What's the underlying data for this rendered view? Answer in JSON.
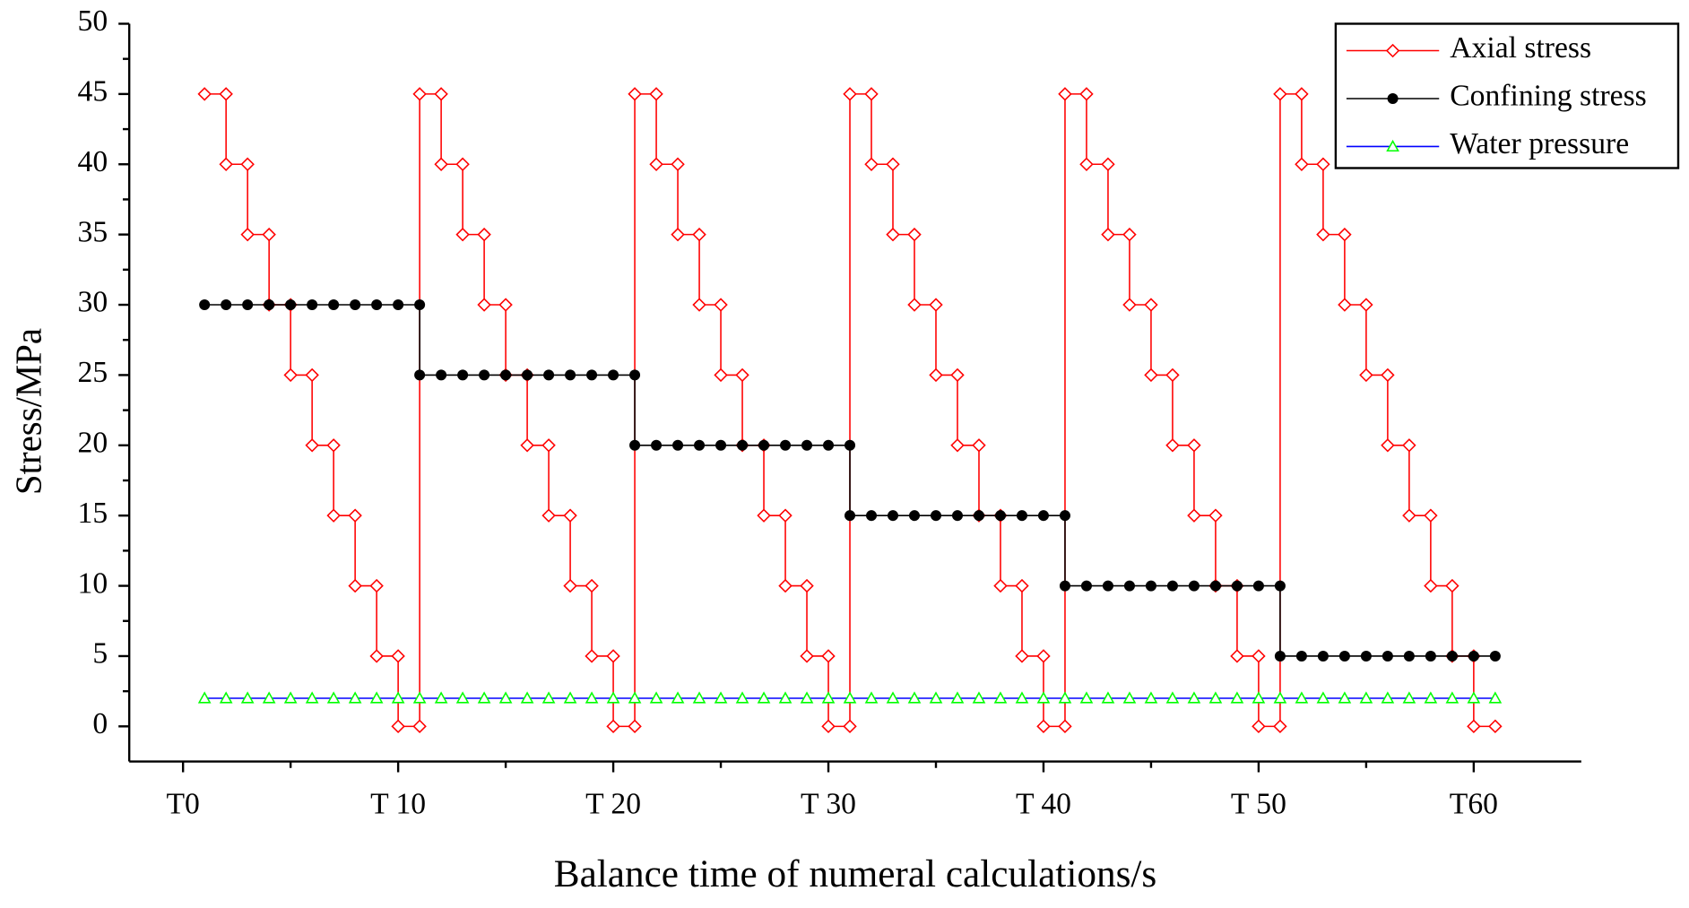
{
  "chart_data": {
    "type": "line",
    "xlabel": "Balance time of numeral calculations/s",
    "ylabel": "Stress/MPa",
    "xlim": [
      -2.5,
      65
    ],
    "xticks": [
      {
        "value": 0,
        "label": "T0"
      },
      {
        "value": 10,
        "label": "T 10"
      },
      {
        "value": 20,
        "label": "T 20"
      },
      {
        "value": 30,
        "label": "T 30"
      },
      {
        "value": 40,
        "label": "T 40"
      },
      {
        "value": 50,
        "label": "T 50"
      },
      {
        "value": 60,
        "label": "T60"
      }
    ],
    "ylim": [
      -2.5,
      50
    ],
    "yticks": [
      0,
      5,
      10,
      15,
      20,
      25,
      30,
      35,
      40,
      45,
      50
    ],
    "legend": "upper right",
    "series": [
      {
        "name": "Axial stress",
        "color": "#ff0000",
        "marker": "diamond",
        "marker_color": "#ff0000",
        "x": [
          1,
          2,
          2,
          3,
          3,
          4,
          4,
          5,
          5,
          6,
          6,
          7,
          7,
          8,
          8,
          9,
          9,
          10,
          10,
          11,
          11,
          12,
          12,
          13,
          13,
          14,
          14,
          15,
          15,
          16,
          16,
          17,
          17,
          18,
          18,
          19,
          19,
          20,
          20,
          21,
          21,
          22,
          22,
          23,
          23,
          24,
          24,
          25,
          25,
          26,
          26,
          27,
          27,
          28,
          28,
          29,
          29,
          30,
          30,
          31,
          31,
          32,
          32,
          33,
          33,
          34,
          34,
          35,
          35,
          36,
          36,
          37,
          37,
          38,
          38,
          39,
          39,
          40,
          40,
          41,
          41,
          42,
          42,
          43,
          43,
          44,
          44,
          45,
          45,
          46,
          46,
          47,
          47,
          48,
          48,
          49,
          49,
          50,
          50,
          51,
          51,
          52,
          52,
          53,
          53,
          54,
          54,
          55,
          55,
          56,
          56,
          57,
          57,
          58,
          58,
          59,
          59,
          60,
          60,
          61
        ],
        "values": [
          45,
          45,
          40,
          40,
          35,
          35,
          30,
          30,
          25,
          25,
          20,
          20,
          15,
          15,
          10,
          10,
          5,
          5,
          0,
          0,
          45,
          45,
          40,
          40,
          35,
          35,
          30,
          30,
          25,
          25,
          20,
          20,
          15,
          15,
          10,
          10,
          5,
          5,
          0,
          0,
          45,
          45,
          40,
          40,
          35,
          35,
          30,
          30,
          25,
          25,
          20,
          20,
          15,
          15,
          10,
          10,
          5,
          5,
          0,
          0,
          45,
          45,
          40,
          40,
          35,
          35,
          30,
          30,
          25,
          25,
          20,
          20,
          15,
          15,
          10,
          10,
          5,
          5,
          0,
          0,
          45,
          45,
          40,
          40,
          35,
          35,
          30,
          30,
          25,
          25,
          20,
          20,
          15,
          15,
          10,
          10,
          5,
          5,
          0,
          0,
          45,
          45,
          40,
          40,
          35,
          35,
          30,
          30,
          25,
          25,
          20,
          20,
          15,
          15,
          10,
          10,
          5,
          5,
          0,
          0
        ]
      },
      {
        "name": "Confining stress",
        "color": "#000000",
        "marker": "circle",
        "marker_color": "#000000",
        "x": [
          1,
          2,
          3,
          4,
          5,
          6,
          7,
          8,
          9,
          10,
          11,
          11,
          12,
          13,
          14,
          15,
          16,
          17,
          18,
          19,
          20,
          21,
          21,
          22,
          23,
          24,
          25,
          26,
          27,
          28,
          29,
          30,
          31,
          31,
          32,
          33,
          34,
          35,
          36,
          37,
          38,
          39,
          40,
          41,
          41,
          42,
          43,
          44,
          45,
          46,
          47,
          48,
          49,
          50,
          51,
          51,
          52,
          53,
          54,
          55,
          56,
          57,
          58,
          59,
          60,
          61
        ],
        "values": [
          30,
          30,
          30,
          30,
          30,
          30,
          30,
          30,
          30,
          30,
          30,
          25,
          25,
          25,
          25,
          25,
          25,
          25,
          25,
          25,
          25,
          25,
          20,
          20,
          20,
          20,
          20,
          20,
          20,
          20,
          20,
          20,
          20,
          15,
          15,
          15,
          15,
          15,
          15,
          15,
          15,
          15,
          15,
          15,
          10,
          10,
          10,
          10,
          10,
          10,
          10,
          10,
          10,
          10,
          10,
          5,
          5,
          5,
          5,
          5,
          5,
          5,
          5,
          5,
          5,
          5
        ]
      },
      {
        "name": "Water pressure",
        "color": "#0000ff",
        "marker": "triangle",
        "marker_color": "#00ff00",
        "x": [
          1,
          2,
          3,
          4,
          5,
          6,
          7,
          8,
          9,
          10,
          11,
          12,
          13,
          14,
          15,
          16,
          17,
          18,
          19,
          20,
          21,
          22,
          23,
          24,
          25,
          26,
          27,
          28,
          29,
          30,
          31,
          32,
          33,
          34,
          35,
          36,
          37,
          38,
          39,
          40,
          41,
          42,
          43,
          44,
          45,
          46,
          47,
          48,
          49,
          50,
          51,
          52,
          53,
          54,
          55,
          56,
          57,
          58,
          59,
          60,
          61
        ],
        "values": [
          2,
          2,
          2,
          2,
          2,
          2,
          2,
          2,
          2,
          2,
          2,
          2,
          2,
          2,
          2,
          2,
          2,
          2,
          2,
          2,
          2,
          2,
          2,
          2,
          2,
          2,
          2,
          2,
          2,
          2,
          2,
          2,
          2,
          2,
          2,
          2,
          2,
          2,
          2,
          2,
          2,
          2,
          2,
          2,
          2,
          2,
          2,
          2,
          2,
          2,
          2,
          2,
          2,
          2,
          2,
          2,
          2,
          2,
          2,
          2,
          2
        ]
      }
    ]
  }
}
